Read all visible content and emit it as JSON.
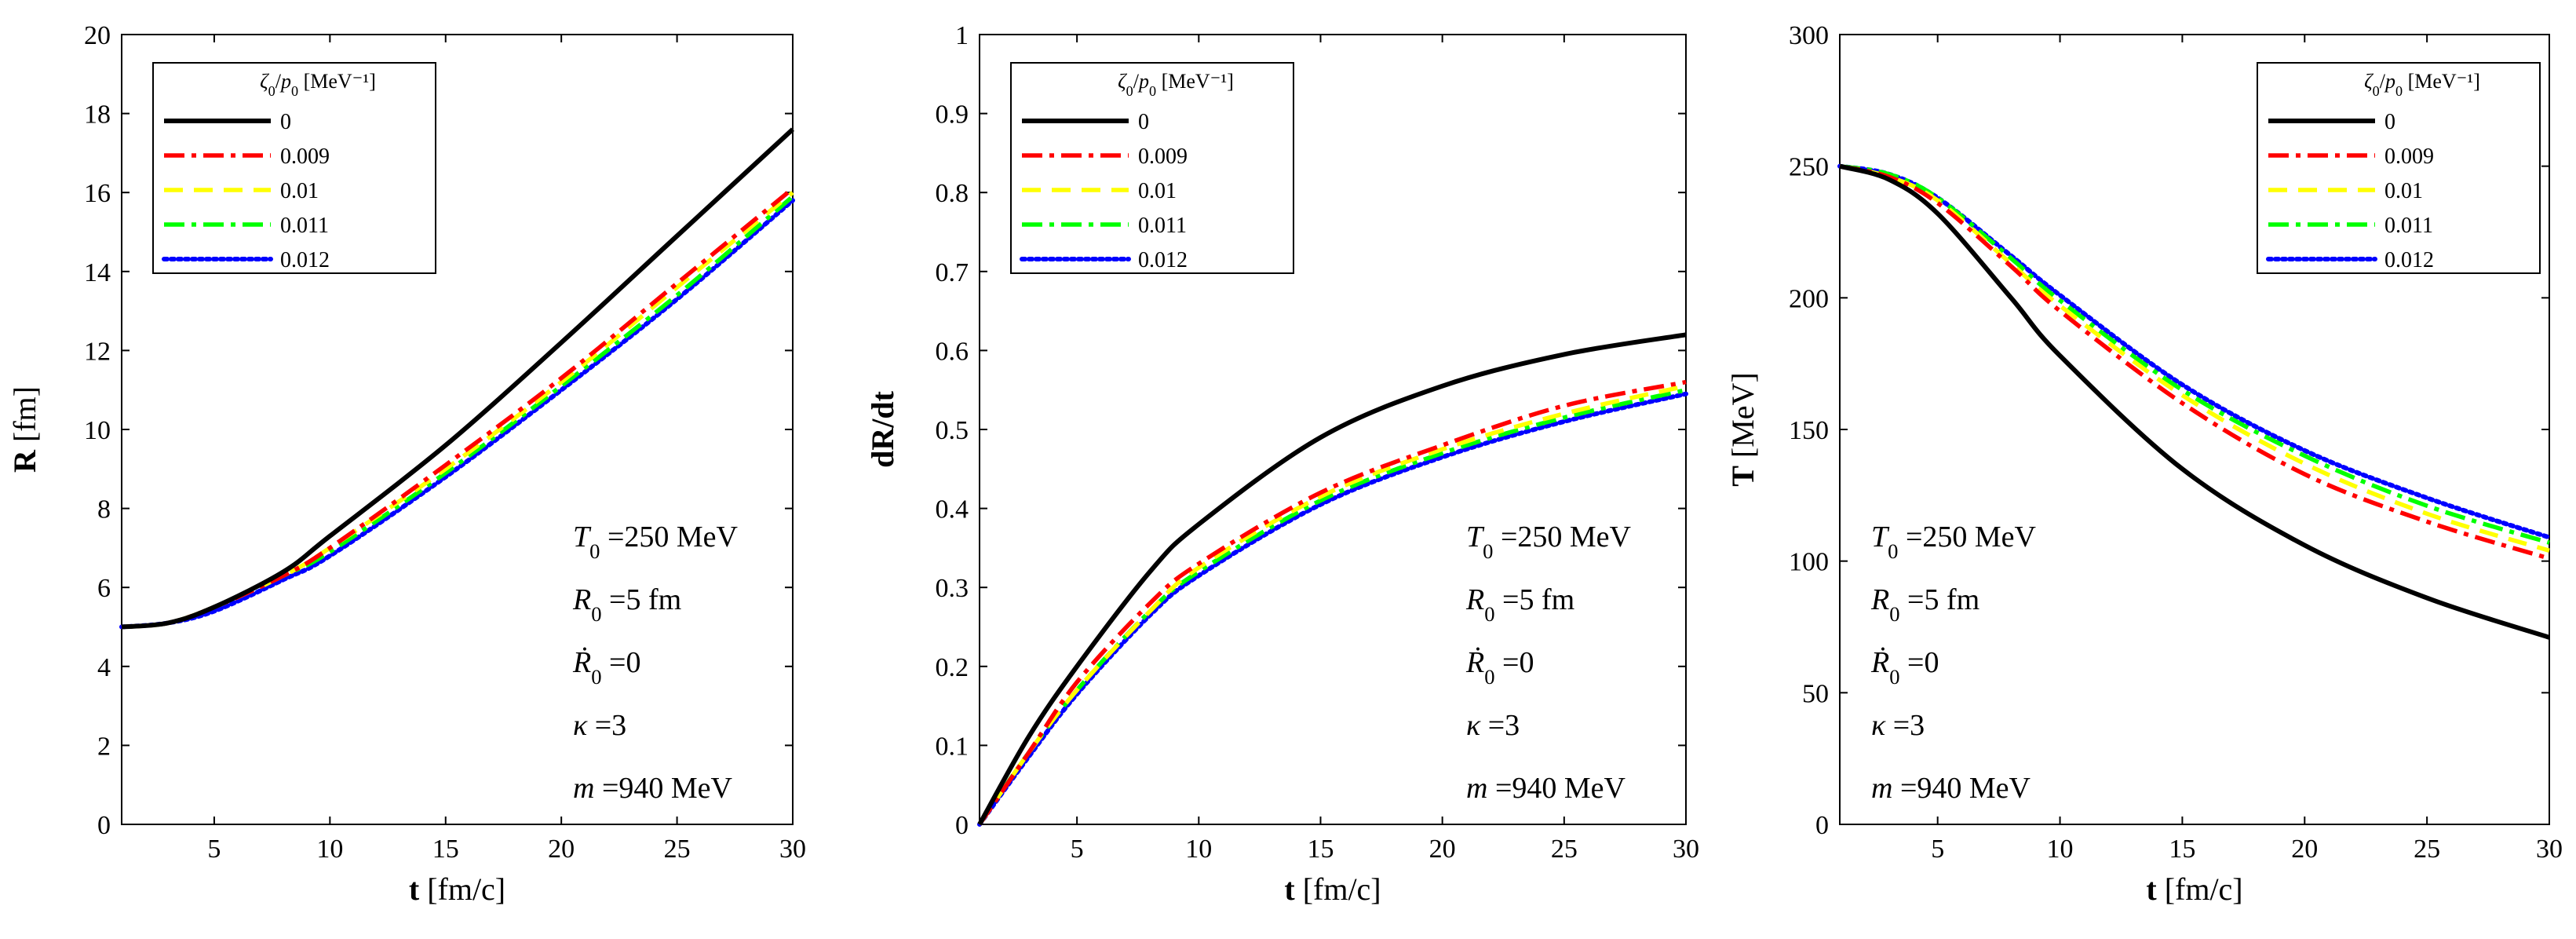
{
  "chart_data": [
    {
      "type": "line",
      "panel": "left",
      "xlabel": "t [fm/c]",
      "ylabel": "R [fm]",
      "xlim": [
        1,
        30
      ],
      "ylim": [
        0,
        20
      ],
      "xticks": [
        5,
        10,
        15,
        20,
        25,
        30
      ],
      "yticks": [
        0,
        2,
        4,
        6,
        8,
        10,
        12,
        14,
        16,
        18,
        20
      ],
      "legend": {
        "title": "ζ0/p0 [MeV⁻¹]",
        "position": "top-left"
      },
      "annotations": [
        "T0 =250 MeV",
        "R0 =5 fm",
        "Ṙ0 =0",
        "κ =3",
        "m =940 MeV"
      ],
      "x": [
        1,
        3,
        5,
        8,
        10,
        15,
        20,
        25,
        30
      ],
      "series": [
        {
          "name": "0",
          "color": "#000000",
          "style": "solid",
          "values": [
            5.0,
            5.1,
            5.5,
            6.4,
            7.3,
            9.6,
            12.2,
            14.9,
            17.6
          ]
        },
        {
          "name": "0.009",
          "color": "#ff0000",
          "style": "dashdot",
          "values": [
            5.0,
            5.1,
            5.5,
            6.3,
            7.0,
            9.1,
            11.3,
            13.7,
            16.1
          ]
        },
        {
          "name": "0.01",
          "color": "#ffff00",
          "style": "dashed",
          "values": [
            5.0,
            5.1,
            5.5,
            6.3,
            7.0,
            9.0,
            11.2,
            13.6,
            16.0
          ]
        },
        {
          "name": "0.011",
          "color": "#00ff00",
          "style": "dashdot",
          "values": [
            5.0,
            5.1,
            5.5,
            6.3,
            6.9,
            8.9,
            11.1,
            13.4,
            15.9
          ]
        },
        {
          "name": "0.012",
          "color": "#0000ff",
          "style": "dotted",
          "values": [
            5.0,
            5.1,
            5.4,
            6.2,
            6.8,
            8.8,
            11.0,
            13.3,
            15.8
          ]
        }
      ]
    },
    {
      "type": "line",
      "panel": "middle",
      "xlabel": "t [fm/c]",
      "ylabel": "dR/dt",
      "xlim": [
        1,
        30
      ],
      "ylim": [
        0,
        1
      ],
      "xticks": [
        5,
        10,
        15,
        20,
        25,
        30
      ],
      "yticks": [
        0,
        0.1,
        0.2,
        0.3,
        0.4,
        0.5,
        0.6,
        0.7,
        0.8,
        0.9,
        1
      ],
      "legend": {
        "title": "ζ0/p0 [MeV⁻¹]",
        "position": "top-left"
      },
      "annotations": [
        "T0 =250 MeV",
        "R0 =5 fm",
        "Ṙ0 =0",
        "κ =3",
        "m =940 MeV"
      ],
      "x": [
        1,
        3,
        5,
        8,
        10,
        15,
        20,
        25,
        30
      ],
      "series": [
        {
          "name": "0",
          "color": "#000000",
          "style": "solid",
          "values": [
            0,
            0.11,
            0.2,
            0.32,
            0.38,
            0.49,
            0.555,
            0.595,
            0.62
          ]
        },
        {
          "name": "0.009",
          "color": "#ff0000",
          "style": "dashdot",
          "values": [
            0,
            0.09,
            0.18,
            0.28,
            0.33,
            0.42,
            0.48,
            0.53,
            0.56
          ]
        },
        {
          "name": "0.01",
          "color": "#ffff00",
          "style": "dashed",
          "values": [
            0,
            0.09,
            0.17,
            0.27,
            0.325,
            0.415,
            0.475,
            0.52,
            0.555
          ]
        },
        {
          "name": "0.011",
          "color": "#00ff00",
          "style": "dashdot",
          "values": [
            0,
            0.09,
            0.17,
            0.27,
            0.32,
            0.41,
            0.47,
            0.515,
            0.55
          ]
        },
        {
          "name": "0.012",
          "color": "#0000ff",
          "style": "dotted",
          "values": [
            0,
            0.085,
            0.165,
            0.265,
            0.315,
            0.405,
            0.465,
            0.51,
            0.545
          ]
        }
      ]
    },
    {
      "type": "line",
      "panel": "right",
      "xlabel": "t [fm/c]",
      "ylabel": "T [MeV]",
      "xlim": [
        1,
        30
      ],
      "ylim": [
        0,
        300
      ],
      "xticks": [
        5,
        10,
        15,
        20,
        25,
        30
      ],
      "yticks": [
        0,
        50,
        100,
        150,
        200,
        250,
        300
      ],
      "legend": {
        "title": "ζ0/p0 [MeV⁻¹]",
        "position": "top-right"
      },
      "annotations": [
        "T0 =250 MeV",
        "R0 =5 fm",
        "Ṙ0 =0",
        "κ =3",
        "m =940 MeV"
      ],
      "x": [
        1,
        3,
        5,
        8,
        10,
        15,
        20,
        25,
        30
      ],
      "series": [
        {
          "name": "0",
          "color": "#000000",
          "style": "solid",
          "values": [
            250,
            245,
            232,
            200,
            178,
            135,
            106,
            86,
            71
          ]
        },
        {
          "name": "0.009",
          "color": "#ff0000",
          "style": "dashdot",
          "values": [
            250,
            246,
            236,
            212,
            195,
            160,
            133,
            115,
            101
          ]
        },
        {
          "name": "0.01",
          "color": "#ffff00",
          "style": "dashed",
          "values": [
            250,
            246,
            237,
            213,
            197,
            163,
            137,
            118,
            104
          ]
        },
        {
          "name": "0.011",
          "color": "#00ff00",
          "style": "dashdot",
          "values": [
            250,
            247,
            238,
            215,
            199,
            165,
            140,
            121,
            107
          ]
        },
        {
          "name": "0.012",
          "color": "#0000ff",
          "style": "dotted",
          "values": [
            250,
            247,
            238,
            216,
            201,
            167,
            142,
            124,
            109
          ]
        }
      ]
    }
  ]
}
